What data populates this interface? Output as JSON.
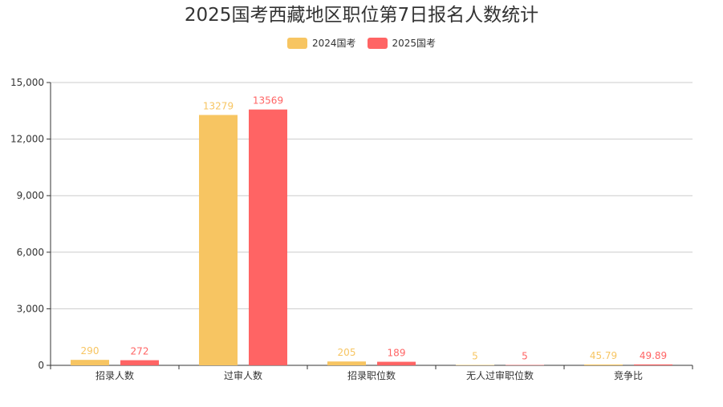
{
  "chart_data": {
    "type": "bar",
    "title": "2025国考西藏地区职位第7日报名人数统计",
    "categories": [
      "招录人数",
      "过审人数",
      "招录职位数",
      "无人过审职位数",
      "竞争比"
    ],
    "series": [
      {
        "name": "2024国考",
        "color": "#f7c562",
        "values": [
          290,
          13279,
          205,
          5,
          45.79
        ],
        "labels": [
          "290",
          "13279",
          "205",
          "5",
          "45.79"
        ]
      },
      {
        "name": "2025国考",
        "color": "#ff6464",
        "values": [
          272,
          13569,
          189,
          5,
          49.89
        ],
        "labels": [
          "272",
          "13569",
          "189",
          "5",
          "49.89"
        ]
      }
    ],
    "yticks": [
      "0",
      "3,000",
      "6,000",
      "9,000",
      "12,000",
      "15,000"
    ],
    "ylim": [
      0,
      15000
    ],
    "xlabel": "",
    "ylabel": "",
    "grid": true,
    "legend_position": "top-center"
  }
}
